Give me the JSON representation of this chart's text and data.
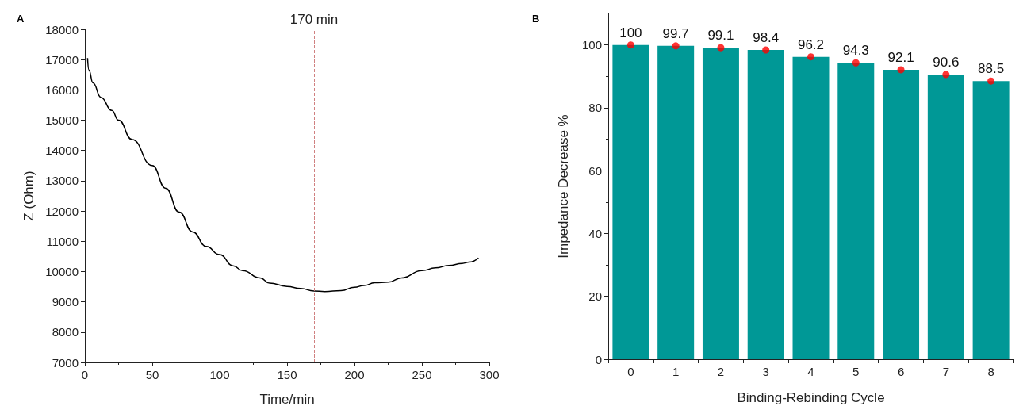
{
  "chart_data": [
    {
      "type": "line",
      "title": "A",
      "xlabel": "Time/min",
      "ylabel": "Z (Ohm)",
      "xlim": [
        0,
        300
      ],
      "xticks": [
        0,
        50,
        100,
        150,
        200,
        250,
        300
      ],
      "ylim": [
        7000,
        18000
      ],
      "yticks": [
        7000,
        8000,
        9000,
        10000,
        11000,
        12000,
        13000,
        14000,
        15000,
        16000,
        17000,
        18000
      ],
      "grid": false,
      "marker": "none",
      "line_style": "solid",
      "series": [
        {
          "color": "#000000",
          "x": [
            2,
            3,
            6,
            12,
            20,
            25,
            35,
            50,
            60,
            70,
            80,
            90,
            100,
            110,
            117,
            130,
            137,
            150,
            160,
            170,
            178,
            190,
            200,
            207,
            215,
            225,
            235,
            250,
            260,
            270,
            280,
            285,
            292
          ],
          "values": [
            17050,
            16660,
            16230,
            15750,
            15320,
            15000,
            14360,
            13500,
            12750,
            11960,
            11310,
            10830,
            10560,
            10190,
            10030,
            9790,
            9620,
            9510,
            9440,
            9360,
            9340,
            9370,
            9480,
            9540,
            9630,
            9650,
            9790,
            10030,
            10120,
            10200,
            10270,
            10310,
            10450
          ]
        }
      ],
      "ref_lines": [
        {
          "axis": "x",
          "value": 170,
          "label": "170 min",
          "color": "#d08080",
          "line_style": "dashed"
        }
      ]
    },
    {
      "type": "bar",
      "title": "B",
      "xlabel": "Binding-Rebinding Cycle",
      "ylabel": "Impedance Decrease %",
      "categories": [
        "0",
        "1",
        "2",
        "3",
        "4",
        "5",
        "6",
        "7",
        "8"
      ],
      "ylim": [
        0,
        110
      ],
      "yticks": [
        0,
        20,
        40,
        60,
        80,
        100
      ],
      "grid": false,
      "series": [
        {
          "color": "#009896",
          "values": [
            100,
            99.7,
            99.1,
            98.4,
            96.2,
            94.3,
            92.1,
            90.6,
            88.5
          ],
          "value_labels": [
            "100",
            "99.7",
            "99.1",
            "98.4",
            "96.2",
            "94.3",
            "92.1",
            "90.6",
            "88.5"
          ]
        },
        {
          "type": "scatter",
          "color": "#ff0000",
          "x": [
            "0",
            "1",
            "2",
            "3",
            "4",
            "5",
            "6",
            "7",
            "8"
          ],
          "values": [
            100,
            99.7,
            99.1,
            98.4,
            96.2,
            94.3,
            92.1,
            90.6,
            88.5
          ],
          "marker": "circle"
        }
      ]
    }
  ]
}
